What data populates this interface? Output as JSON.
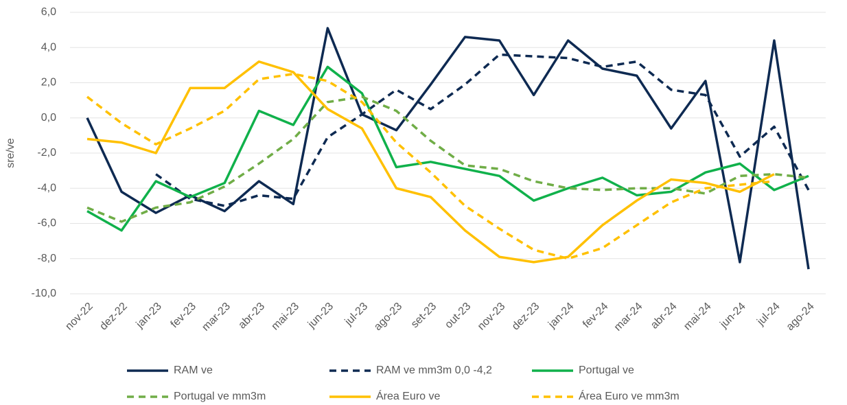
{
  "chart_data": {
    "type": "line",
    "y_label": "sre/ve",
    "categories": [
      "nov-22",
      "dez-22",
      "jan-23",
      "fev-23",
      "mar-23",
      "abr-23",
      "mai-23",
      "jun-23",
      "jul-23",
      "ago-23",
      "set-23",
      "out-23",
      "nov-23",
      "dez-23",
      "jan-24",
      "fev-24",
      "mar-24",
      "abr-24",
      "mai-24",
      "jun-24",
      "jul-24",
      "ago-24"
    ],
    "series": [
      {
        "name": "RAM ve",
        "color": "#0e2a52",
        "dashed": false,
        "values": [
          0.0,
          -4.2,
          -5.4,
          -4.4,
          -5.3,
          -3.6,
          -4.9,
          5.1,
          0.2,
          -0.7,
          1.9,
          4.6,
          4.4,
          1.3,
          4.4,
          2.8,
          2.4,
          -0.6,
          2.1,
          -8.2,
          4.4,
          -8.6
        ]
      },
      {
        "name": "RAM ve mm3m 0,0 -4,2",
        "color": "#0e2a52",
        "dashed": true,
        "values": [
          null,
          null,
          -3.2,
          -4.6,
          -5.0,
          -4.4,
          -4.6,
          -1.1,
          0.2,
          1.6,
          0.5,
          1.9,
          3.6,
          3.5,
          3.4,
          2.9,
          3.2,
          1.6,
          1.3,
          -2.2,
          -0.5,
          -4.1
        ]
      },
      {
        "name": "Portugal ve",
        "color": "#10b14b",
        "dashed": false,
        "values": [
          -5.3,
          -6.4,
          -3.6,
          -4.5,
          -3.7,
          0.4,
          -0.4,
          2.9,
          1.4,
          -2.8,
          -2.5,
          -2.9,
          -3.3,
          -4.7,
          -4.0,
          -3.4,
          -4.4,
          -4.2,
          -3.1,
          -2.6,
          -4.1,
          -3.3
        ]
      },
      {
        "name": "Portugal ve mm3m",
        "color": "#70ad47",
        "dashed": true,
        "values": [
          -5.1,
          -5.9,
          -5.1,
          -4.8,
          -3.9,
          -2.6,
          -1.2,
          0.9,
          1.2,
          0.4,
          -1.3,
          -2.7,
          -2.9,
          -3.6,
          -4.0,
          -4.1,
          -4.0,
          -4.0,
          -4.3,
          -3.3,
          -3.2,
          -3.4
        ]
      },
      {
        "name": "Área Euro ve",
        "color": "#ffc000",
        "dashed": false,
        "values": [
          -1.2,
          -1.4,
          -2.0,
          1.7,
          1.7,
          3.2,
          2.6,
          0.5,
          -0.6,
          -4.0,
          -4.5,
          -6.4,
          -7.9,
          -8.2,
          -7.9,
          -6.1,
          -4.7,
          -3.5,
          -3.7,
          -4.2,
          -3.2,
          null
        ]
      },
      {
        "name": "Área Euro ve mm3m",
        "color": "#ffc000",
        "dashed": true,
        "values": [
          1.2,
          -0.3,
          -1.5,
          -0.6,
          0.4,
          2.2,
          2.5,
          2.1,
          0.9,
          -1.4,
          -3.1,
          -5.0,
          -6.3,
          -7.5,
          -8.0,
          -7.4,
          -6.1,
          -4.8,
          -4.0,
          -3.8,
          -3.6,
          null
        ]
      }
    ],
    "ylim": [
      -10,
      6
    ],
    "yticks": [
      {
        "value": -10,
        "label": "-10,0"
      },
      {
        "value": -8,
        "label": "-8,0"
      },
      {
        "value": -6,
        "label": "-6,0"
      },
      {
        "value": -4,
        "label": "-4,0"
      },
      {
        "value": -2,
        "label": "-2,0"
      },
      {
        "value": 0,
        "label": "0,0"
      },
      {
        "value": 2,
        "label": "2,0"
      },
      {
        "value": 4,
        "label": "4,0"
      },
      {
        "value": 6,
        "label": "6,0"
      }
    ],
    "grid": true,
    "legend": "bottom"
  }
}
